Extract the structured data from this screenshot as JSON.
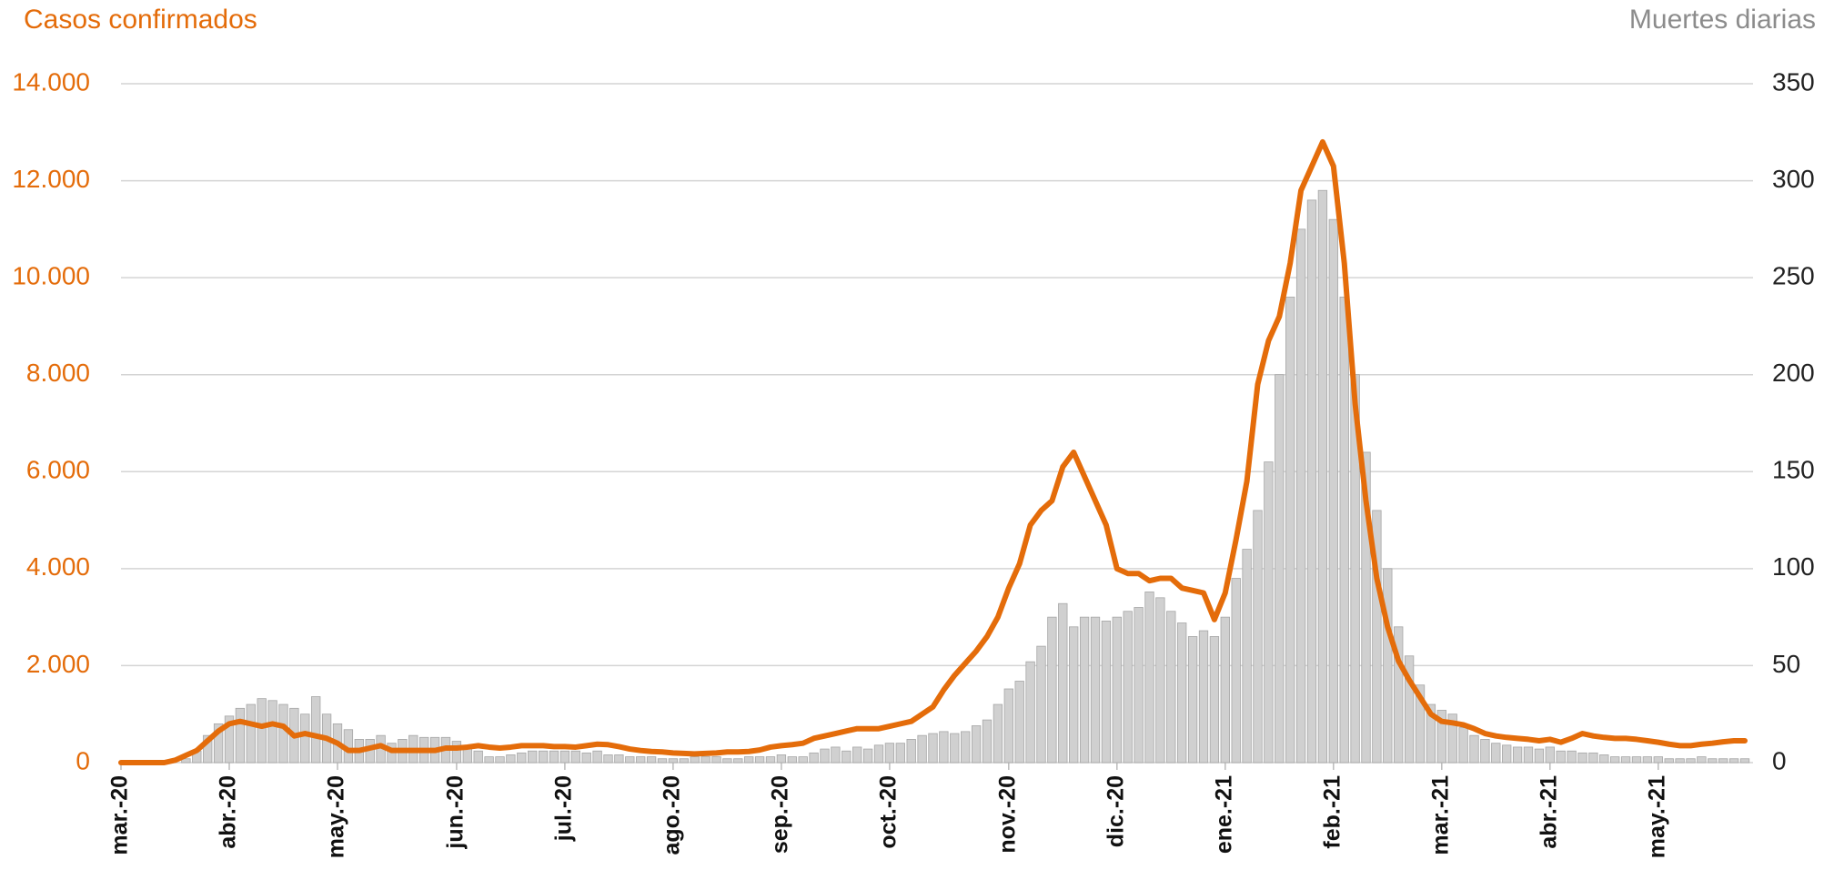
{
  "chart_data": {
    "type": "combo",
    "categories": [
      "mar.-20",
      null,
      null,
      null,
      null,
      null,
      null,
      null,
      null,
      null,
      "abr.-20",
      null,
      null,
      null,
      null,
      null,
      null,
      null,
      null,
      null,
      "may.-20",
      null,
      null,
      null,
      null,
      null,
      null,
      null,
      null,
      null,
      null,
      "jun.-20",
      null,
      null,
      null,
      null,
      null,
      null,
      null,
      null,
      null,
      "jul.-20",
      null,
      null,
      null,
      null,
      null,
      null,
      null,
      null,
      null,
      "ago.-20",
      null,
      null,
      null,
      null,
      null,
      null,
      null,
      null,
      null,
      "sep.-20",
      null,
      null,
      null,
      null,
      null,
      null,
      null,
      null,
      null,
      "oct.-20",
      null,
      null,
      null,
      null,
      null,
      null,
      null,
      null,
      null,
      null,
      "nov.-20",
      null,
      null,
      null,
      null,
      null,
      null,
      null,
      null,
      null,
      "dic.-20",
      null,
      null,
      null,
      null,
      null,
      null,
      null,
      null,
      null,
      "ene.-21",
      null,
      null,
      null,
      null,
      null,
      null,
      null,
      null,
      null,
      "feb.-21",
      null,
      null,
      null,
      null,
      null,
      null,
      null,
      null,
      null,
      "mar.-21",
      null,
      null,
      null,
      null,
      null,
      null,
      null,
      null,
      null,
      "abr.-21",
      null,
      null,
      null,
      null,
      null,
      null,
      null,
      null,
      null,
      "may.-21",
      null,
      null,
      null,
      null,
      null,
      null,
      null,
      null
    ],
    "series": [
      {
        "name": "Muertes diarias",
        "type": "bar",
        "axis": "y2",
        "color": "#d0d0d0",
        "values": [
          0,
          0,
          0,
          0,
          0,
          0,
          2,
          6,
          14,
          20,
          24,
          28,
          30,
          33,
          32,
          30,
          28,
          25,
          34,
          25,
          20,
          17,
          12,
          12,
          14,
          10,
          12,
          14,
          13,
          13,
          13,
          11,
          8,
          6,
          3,
          3,
          4,
          5,
          6,
          6,
          6,
          6,
          6,
          5,
          6,
          4,
          4,
          3,
          3,
          3,
          2,
          2,
          2,
          3,
          3,
          3,
          2,
          2,
          3,
          3,
          3,
          4,
          3,
          3,
          5,
          7,
          8,
          6,
          8,
          7,
          9,
          10,
          10,
          12,
          14,
          15,
          16,
          15,
          16,
          19,
          22,
          30,
          38,
          42,
          52,
          60,
          75,
          82,
          70,
          75,
          75,
          73,
          75,
          78,
          80,
          88,
          85,
          78,
          72,
          65,
          68,
          65,
          75,
          95,
          110,
          130,
          155,
          200,
          240,
          275,
          290,
          295,
          280,
          240,
          200,
          160,
          130,
          100,
          70,
          55,
          40,
          30,
          27,
          25,
          18,
          14,
          12,
          10,
          9,
          8,
          8,
          7,
          8,
          6,
          6,
          5,
          5,
          4,
          3,
          3,
          3,
          3,
          3,
          2,
          2,
          2,
          3,
          2,
          2,
          2,
          2
        ]
      },
      {
        "name": "Casos confirmados",
        "type": "line",
        "axis": "y",
        "color": "#e46c0a",
        "values": [
          0,
          0,
          0,
          0,
          0,
          50,
          150,
          250,
          450,
          650,
          800,
          850,
          800,
          750,
          800,
          750,
          550,
          600,
          550,
          500,
          400,
          250,
          250,
          300,
          350,
          250,
          250,
          250,
          250,
          250,
          300,
          300,
          320,
          350,
          320,
          300,
          320,
          350,
          350,
          350,
          330,
          330,
          320,
          350,
          380,
          370,
          330,
          280,
          250,
          230,
          220,
          200,
          190,
          180,
          190,
          200,
          220,
          220,
          230,
          260,
          320,
          350,
          370,
          400,
          500,
          550,
          600,
          650,
          700,
          700,
          700,
          750,
          800,
          850,
          1000,
          1150,
          1500,
          1800,
          2050,
          2300,
          2600,
          3000,
          3600,
          4100,
          4900,
          5200,
          5400,
          6100,
          6400,
          5900,
          5400,
          4900,
          4000,
          3900,
          3900,
          3750,
          3800,
          3800,
          3600,
          3550,
          3500,
          2950,
          3500,
          4600,
          5800,
          7800,
          8700,
          9200,
          10300,
          11800,
          12300,
          12800,
          12300,
          10300,
          7400,
          5400,
          3800,
          2800,
          2100,
          1700,
          1350,
          1000,
          850,
          820,
          780,
          700,
          600,
          550,
          520,
          500,
          480,
          450,
          480,
          420,
          500,
          600,
          550,
          520,
          500,
          500,
          480,
          450,
          420,
          380,
          350,
          350,
          380,
          400,
          430,
          450,
          450
        ]
      }
    ],
    "ylim": [
      0,
      14000
    ],
    "yticks": [
      0,
      {
        "value": 2000,
        "label": "2.000"
      },
      {
        "value": 4000,
        "label": "4.000"
      },
      {
        "value": 6000,
        "label": "6.000"
      },
      {
        "value": 8000,
        "label": "8.000"
      },
      {
        "value": 10000,
        "label": "10.000"
      },
      {
        "value": 12000,
        "label": "12.000"
      },
      {
        "value": 14000,
        "label": "14.000"
      }
    ],
    "y2lim": [
      0,
      350
    ],
    "y2ticks": [
      0,
      50,
      100,
      150,
      200,
      250,
      300,
      350
    ],
    "grid": true
  }
}
